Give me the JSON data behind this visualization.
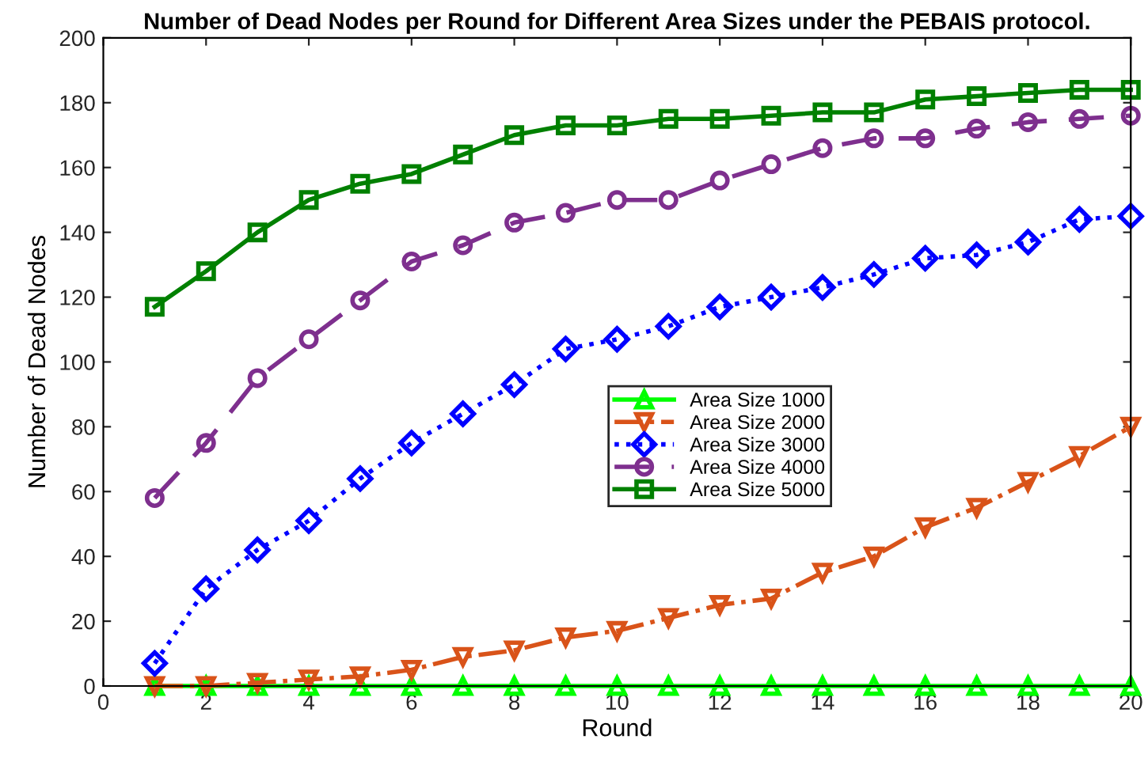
{
  "chart_data": {
    "type": "line",
    "title": "Number of Dead Nodes per Round for Different Area Sizes under the PEBAIS protocol.",
    "xlabel": "Round",
    "ylabel": "Number of Dead Nodes",
    "x": [
      1,
      2,
      3,
      4,
      5,
      6,
      7,
      8,
      9,
      10,
      11,
      12,
      13,
      14,
      15,
      16,
      17,
      18,
      19,
      20
    ],
    "series": [
      {
        "name": "Area Size 1000",
        "color": "#00ff00",
        "marker": "triangle",
        "line_style": "solid",
        "values": [
          0,
          0,
          0,
          0,
          0,
          0,
          0,
          0,
          0,
          0,
          0,
          0,
          0,
          0,
          0,
          0,
          0,
          0,
          0,
          0
        ]
      },
      {
        "name": "Area Size 2000",
        "color": "#d95319",
        "marker": "triangle_down",
        "line_style": "dashdot",
        "values": [
          0,
          0,
          1,
          2,
          3,
          5,
          9,
          11,
          15,
          17,
          21,
          25,
          27,
          35,
          40,
          49,
          55,
          63,
          71,
          80
        ]
      },
      {
        "name": "Area Size 3000",
        "color": "#0000ff",
        "marker": "diamond",
        "line_style": "dotted",
        "values": [
          7,
          30,
          42,
          51,
          64,
          75,
          84,
          93,
          104,
          107,
          111,
          117,
          120,
          123,
          127,
          132,
          133,
          137,
          144,
          145
        ]
      },
      {
        "name": "Area Size 4000",
        "color": "#7e2f8e",
        "marker": "circle",
        "line_style": "dashed",
        "values": [
          58,
          75,
          95,
          107,
          119,
          131,
          136,
          143,
          146,
          150,
          150,
          156,
          161,
          166,
          169,
          169,
          172,
          174,
          175,
          176
        ]
      },
      {
        "name": "Area Size 5000",
        "color": "#008000",
        "marker": "square",
        "line_style": "solid",
        "values": [
          117,
          128,
          140,
          150,
          155,
          158,
          164,
          170,
          173,
          173,
          175,
          175,
          176,
          177,
          177,
          181,
          182,
          183,
          184,
          184
        ]
      }
    ],
    "xlim": [
      0,
      20
    ],
    "xticks": [
      0,
      2,
      4,
      6,
      8,
      10,
      12,
      14,
      16,
      18,
      20
    ],
    "ylim": [
      0,
      200
    ],
    "yticks": [
      0,
      20,
      40,
      60,
      80,
      100,
      120,
      140,
      160,
      180,
      200
    ],
    "grid": false,
    "legend": "center"
  }
}
